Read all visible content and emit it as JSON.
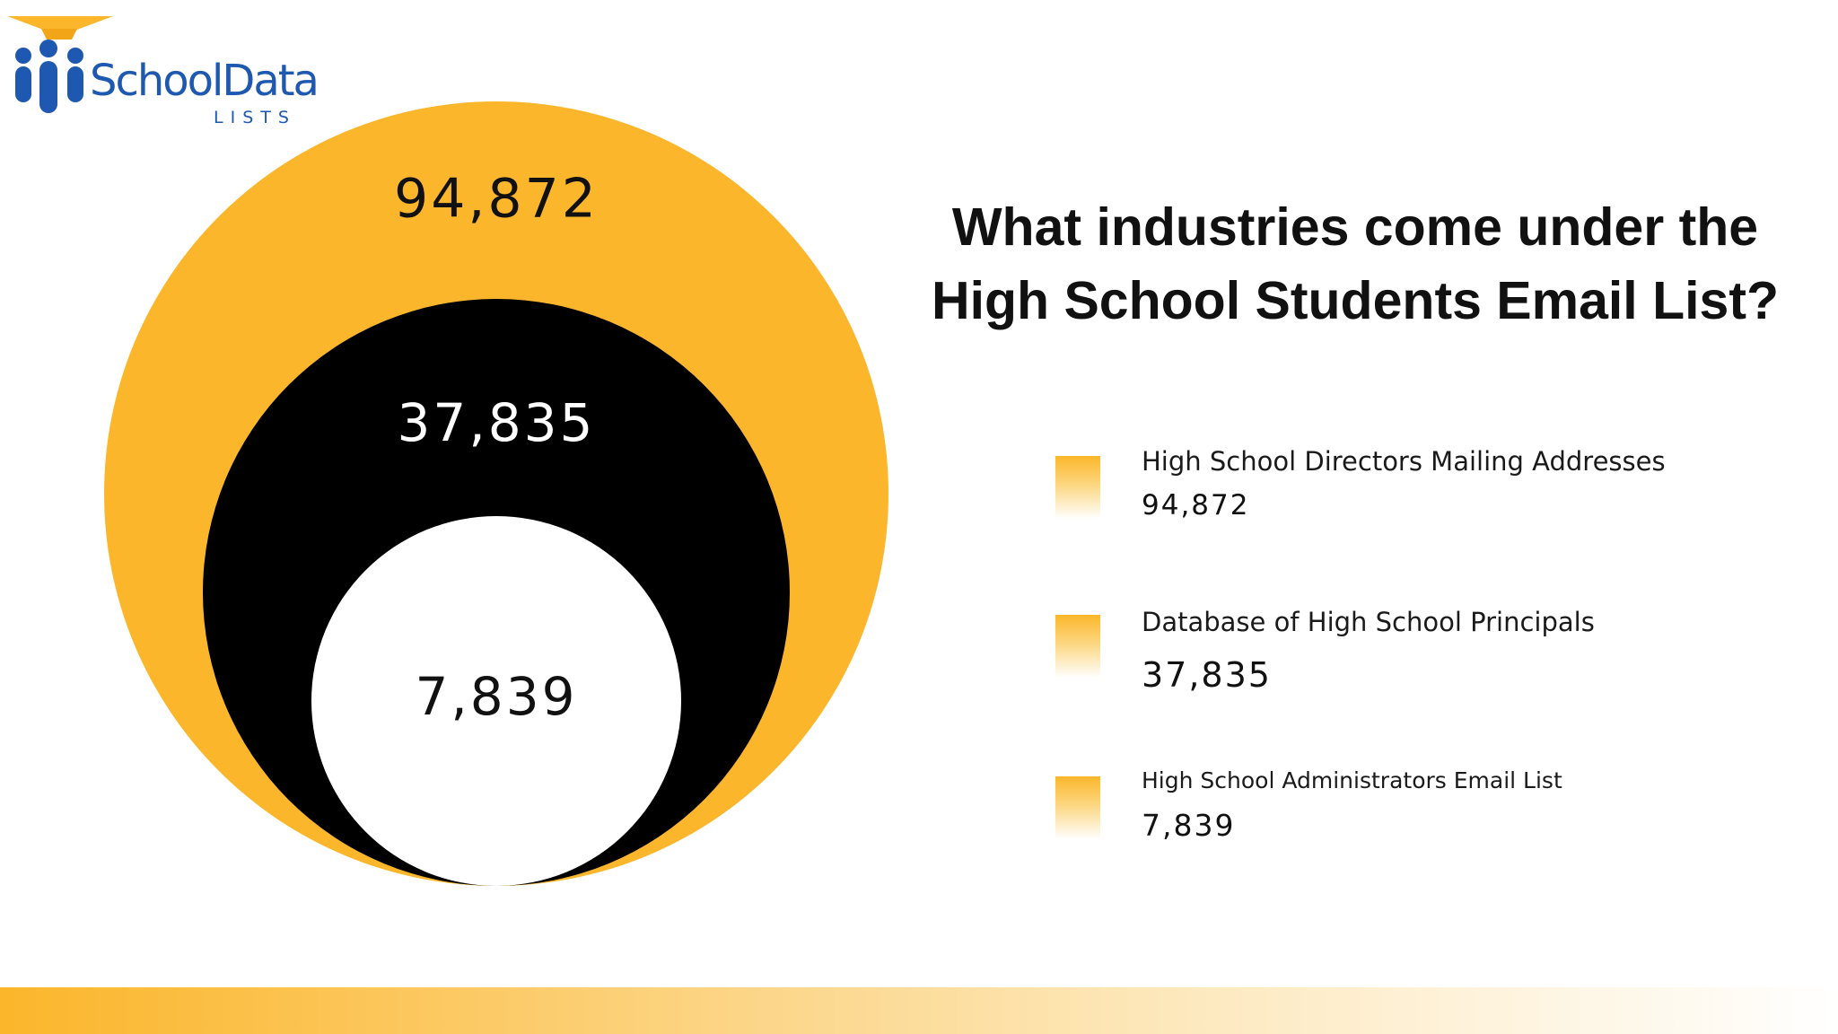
{
  "logo": {
    "brand": "SchoolData",
    "sub": "LISTS",
    "icon": "graduation-cap-people-icon"
  },
  "colors": {
    "accent": "#fbb62b",
    "dark": "#000000",
    "light": "#ffffff",
    "brand_blue": "#1e58b0"
  },
  "chart_data": {
    "type": "nested-circles",
    "title": "What industries come under the High School Students Email List?",
    "series": [
      {
        "name": "High School Directors Mailing Addresses",
        "value": 94872,
        "label": "94,872",
        "color": "#fbb62b",
        "label_color": "#111111"
      },
      {
        "name": "Database of High School Principals",
        "value": 37835,
        "label": "37,835",
        "color": "#000000",
        "label_color": "#ffffff"
      },
      {
        "name": "High School Administrators Email List",
        "value": 7839,
        "label": "7,839",
        "color": "#ffffff",
        "label_color": "#111111"
      }
    ],
    "legend_placement": "right"
  }
}
